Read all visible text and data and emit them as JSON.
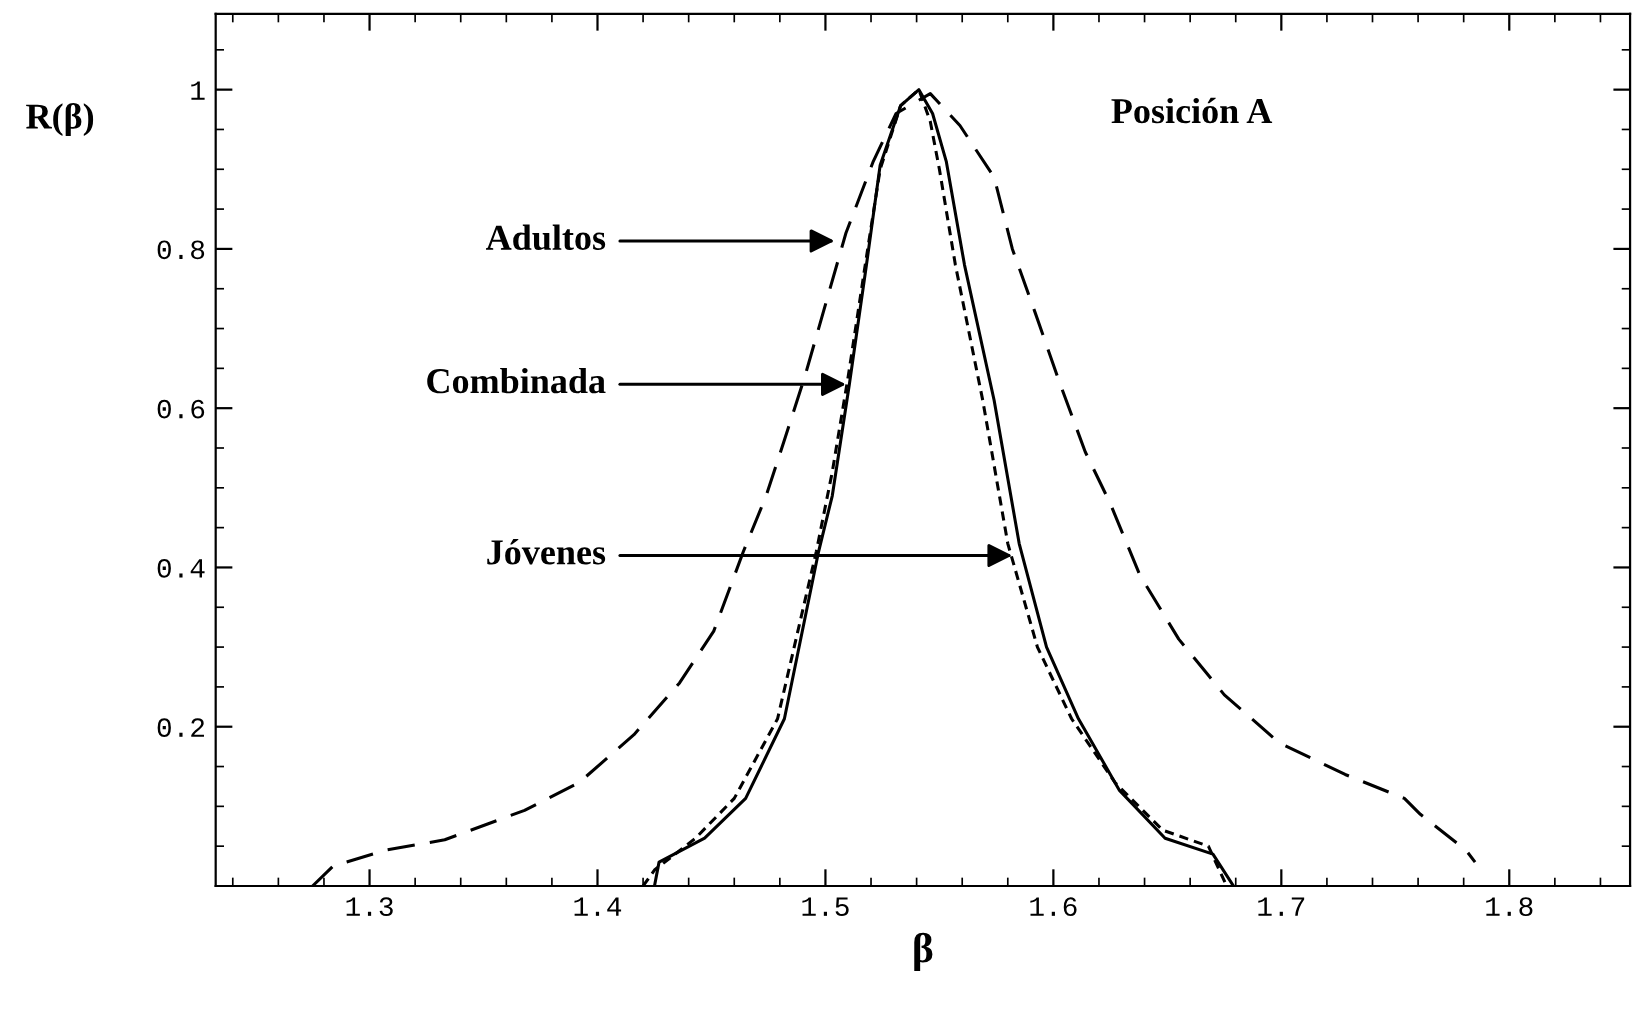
{
  "chart_data": {
    "type": "line",
    "xlabel": "β",
    "ylabel": "R(β)",
    "xlim": [
      1.2325,
      1.853
    ],
    "ylim": [
      0,
      1.095
    ],
    "xticks": [
      {
        "value": 1.24,
        "label": null
      },
      {
        "value": 1.26,
        "label": null
      },
      {
        "value": 1.28,
        "label": null
      },
      1.3,
      {
        "value": 1.32,
        "label": null
      },
      {
        "value": 1.34,
        "label": null
      },
      {
        "value": 1.36,
        "label": null
      },
      {
        "value": 1.38,
        "label": null
      },
      1.4,
      {
        "value": 1.42,
        "label": null
      },
      {
        "value": 1.44,
        "label": null
      },
      {
        "value": 1.46,
        "label": null
      },
      {
        "value": 1.48,
        "label": null
      },
      1.5,
      {
        "value": 1.52,
        "label": null
      },
      {
        "value": 1.54,
        "label": null
      },
      {
        "value": 1.56,
        "label": null
      },
      {
        "value": 1.58,
        "label": null
      },
      1.6,
      {
        "value": 1.62,
        "label": null
      },
      {
        "value": 1.64,
        "label": null
      },
      {
        "value": 1.66,
        "label": null
      },
      {
        "value": 1.68,
        "label": null
      },
      1.7,
      {
        "value": 1.72,
        "label": null
      },
      {
        "value": 1.74,
        "label": null
      },
      {
        "value": 1.76,
        "label": null
      },
      {
        "value": 1.78,
        "label": null
      },
      1.8,
      {
        "value": 1.82,
        "label": null
      },
      {
        "value": 1.84,
        "label": null
      }
    ],
    "yticks": [
      {
        "value": 0.05,
        "label": null
      },
      {
        "value": 0.1,
        "label": null
      },
      {
        "value": 0.15,
        "label": null
      },
      0.2,
      {
        "value": 0.25,
        "label": null
      },
      {
        "value": 0.3,
        "label": null
      },
      {
        "value": 0.35,
        "label": null
      },
      0.4,
      {
        "value": 0.45,
        "label": null
      },
      {
        "value": 0.5,
        "label": null
      },
      {
        "value": 0.55,
        "label": null
      },
      0.6,
      {
        "value": 0.65,
        "label": null
      },
      {
        "value": 0.7,
        "label": null
      },
      {
        "value": 0.75,
        "label": null
      },
      0.8,
      {
        "value": 0.85,
        "label": null
      },
      {
        "value": 0.9,
        "label": null
      },
      {
        "value": 0.95,
        "label": null
      },
      1,
      {
        "value": 1.05,
        "label": null
      }
    ],
    "grid": false,
    "legend": false,
    "marker": "none",
    "series": [
      {
        "color": "#000000",
        "line_style": "dashed",
        "x": [
          1.275,
          1.284,
          1.307,
          1.333,
          1.368,
          1.392,
          1.416,
          1.436,
          1.451,
          1.464,
          1.474,
          1.482,
          1.491,
          1.5,
          1.509,
          1.521,
          1.531,
          1.546,
          1.559,
          1.574,
          1.582,
          1.592,
          1.603,
          1.614,
          1.625,
          1.638,
          1.655,
          1.675,
          1.699,
          1.728,
          1.754,
          1.761,
          1.781,
          1.785
        ],
        "values": [
          0,
          0.025,
          0.045,
          0.058,
          0.095,
          0.13,
          0.19,
          0.255,
          0.32,
          0.42,
          0.49,
          0.56,
          0.64,
          0.73,
          0.82,
          0.91,
          0.97,
          0.995,
          0.955,
          0.89,
          0.8,
          0.72,
          0.63,
          0.545,
          0.48,
          0.39,
          0.31,
          0.24,
          0.18,
          0.14,
          0.11,
          0.09,
          0.045,
          0.03
        ]
      },
      {
        "color": "#000000",
        "line_style": "solid",
        "x": [
          1.425,
          1.427,
          1.447,
          1.465,
          1.482,
          1.497,
          1.503,
          1.5105,
          1.518,
          1.524,
          1.533,
          1.541,
          1.547,
          1.553,
          1.561,
          1.574,
          1.585,
          1.597,
          1.611,
          1.629,
          1.649,
          1.67,
          1.679
        ],
        "values": [
          0,
          0.03,
          0.06,
          0.11,
          0.21,
          0.42,
          0.49,
          0.63,
          0.78,
          0.905,
          0.98,
          1.0,
          0.97,
          0.91,
          0.78,
          0.61,
          0.43,
          0.3,
          0.21,
          0.12,
          0.06,
          0.04,
          0
        ]
      },
      {
        "color": "#000000",
        "line_style": "dotted",
        "x": [
          1.42,
          1.425,
          1.443,
          1.46,
          1.479,
          1.496,
          1.503,
          1.51,
          1.518,
          1.524,
          1.533,
          1.541,
          1.546,
          1.55,
          1.557,
          1.569,
          1.58,
          1.593,
          1.608,
          1.627,
          1.648,
          1.668,
          1.676
        ],
        "values": [
          0,
          0.02,
          0.06,
          0.11,
          0.21,
          0.42,
          0.52,
          0.64,
          0.79,
          0.9,
          0.98,
          1.0,
          0.96,
          0.9,
          0.78,
          0.61,
          0.43,
          0.3,
          0.21,
          0.13,
          0.07,
          0.05,
          0
        ]
      }
    ],
    "annotations": [
      {
        "text": "Adultos",
        "x": 1.504,
        "y": 0.81
      },
      {
        "text": "Combinada",
        "x": 1.509,
        "y": 0.63
      },
      {
        "text": "Jóvenes",
        "x": 1.582,
        "y": 0.415
      },
      "Posición A"
    ]
  }
}
